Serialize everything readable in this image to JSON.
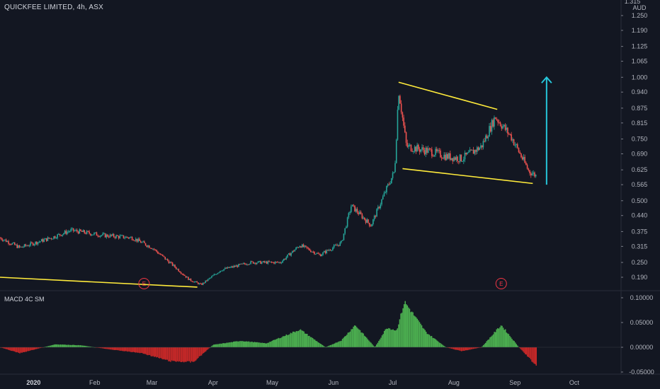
{
  "header": {
    "title": "QUICKFEE LIMITED, 4h, ASX",
    "currency": "AUD"
  },
  "macd_label": "MACD 4C SM",
  "colors": {
    "background": "#131722",
    "up": "#26a69a",
    "down": "#ef5350",
    "trendline": "#ffeb3b",
    "arrow": "#26c6da",
    "macd_positive": "#4caf50",
    "macd_negative": "#c62828",
    "earnings_marker": "#f23645"
  },
  "icons": [
    "earnings-e-icon",
    "arrow-up-icon"
  ],
  "chart_data": [
    {
      "type": "candlestick",
      "title": "QUICKFEE LIMITED, 4h, ASX",
      "y_unit": "AUD",
      "y_ticks": [
        "1.315",
        "1.250",
        "1.190",
        "1.125",
        "1.065",
        "1.000",
        "0.940",
        "0.875",
        "0.815",
        "0.750",
        "0.690",
        "0.625",
        "0.565",
        "0.500",
        "0.440",
        "0.375",
        "0.315",
        "0.250",
        "0.190"
      ],
      "x_ticks": [
        "2020",
        "Feb",
        "Mar",
        "Apr",
        "May",
        "Jun",
        "Jul",
        "Aug",
        "Sep",
        "Oct"
      ],
      "approx_close_path": [
        {
          "date": "2019-12-15",
          "price": 0.35
        },
        {
          "date": "2019-12-25",
          "price": 0.31
        },
        {
          "date": "2020-01-10",
          "price": 0.35
        },
        {
          "date": "2020-01-20",
          "price": 0.38
        },
        {
          "date": "2020-02-05",
          "price": 0.36
        },
        {
          "date": "2020-02-20",
          "price": 0.35
        },
        {
          "date": "2020-03-01",
          "price": 0.31
        },
        {
          "date": "2020-03-10",
          "price": 0.25
        },
        {
          "date": "2020-03-20",
          "price": 0.18
        },
        {
          "date": "2020-03-26",
          "price": 0.16
        },
        {
          "date": "2020-04-05",
          "price": 0.22
        },
        {
          "date": "2020-04-20",
          "price": 0.25
        },
        {
          "date": "2020-05-05",
          "price": 0.25
        },
        {
          "date": "2020-05-15",
          "price": 0.32
        },
        {
          "date": "2020-05-25",
          "price": 0.28
        },
        {
          "date": "2020-06-05",
          "price": 0.33
        },
        {
          "date": "2020-06-10",
          "price": 0.48
        },
        {
          "date": "2020-06-20",
          "price": 0.4
        },
        {
          "date": "2020-06-28",
          "price": 0.55
        },
        {
          "date": "2020-07-02",
          "price": 0.62
        },
        {
          "date": "2020-07-04",
          "price": 0.95
        },
        {
          "date": "2020-07-08",
          "price": 0.72
        },
        {
          "date": "2020-07-20",
          "price": 0.7
        },
        {
          "date": "2020-07-28",
          "price": 0.68
        },
        {
          "date": "2020-08-05",
          "price": 0.67
        },
        {
          "date": "2020-08-15",
          "price": 0.72
        },
        {
          "date": "2020-08-22",
          "price": 0.84
        },
        {
          "date": "2020-08-30",
          "price": 0.76
        },
        {
          "date": "2020-09-08",
          "price": 0.62
        },
        {
          "date": "2020-09-12",
          "price": 0.6
        }
      ],
      "annotations": {
        "upper_trendline": [
          {
            "date": "2020-07-04",
            "price": 0.98
          },
          {
            "date": "2020-08-23",
            "price": 0.87
          }
        ],
        "lower_trendline": [
          {
            "date": "2020-07-06",
            "price": 0.63
          },
          {
            "date": "2020-09-10",
            "price": 0.57
          }
        ],
        "long_trendline": [
          {
            "date": "2019-12-15",
            "price": 0.19
          },
          {
            "date": "2020-03-24",
            "price": 0.15
          }
        ],
        "target_arrow": {
          "from": {
            "date": "2020-09-17",
            "price": 0.565
          },
          "to": {
            "date": "2020-09-17",
            "price": 1.0
          }
        },
        "earnings": [
          {
            "label": "E",
            "date": "2020-02-26"
          },
          {
            "label": "E",
            "date": "2020-08-25"
          }
        ]
      }
    },
    {
      "type": "bar",
      "title": "MACD 4C SM",
      "y_ticks": [
        "0.10000",
        "0.05000",
        "0.00000",
        "-0.05000"
      ],
      "approx_path": [
        {
          "date": "2019-12-15",
          "value": 0.0
        },
        {
          "date": "2019-12-25",
          "value": -0.012
        },
        {
          "date": "2020-01-12",
          "value": 0.006
        },
        {
          "date": "2020-01-25",
          "value": 0.004
        },
        {
          "date": "2020-02-10",
          "value": -0.005
        },
        {
          "date": "2020-02-25",
          "value": -0.012
        },
        {
          "date": "2020-03-10",
          "value": -0.028
        },
        {
          "date": "2020-03-22",
          "value": -0.03
        },
        {
          "date": "2020-04-01",
          "value": 0.005
        },
        {
          "date": "2020-04-15",
          "value": 0.013
        },
        {
          "date": "2020-04-28",
          "value": 0.008
        },
        {
          "date": "2020-05-15",
          "value": 0.036
        },
        {
          "date": "2020-05-28",
          "value": 0.0
        },
        {
          "date": "2020-06-05",
          "value": 0.014
        },
        {
          "date": "2020-06-12",
          "value": 0.045
        },
        {
          "date": "2020-06-22",
          "value": 0.0
        },
        {
          "date": "2020-06-28",
          "value": 0.04
        },
        {
          "date": "2020-07-03",
          "value": 0.034
        },
        {
          "date": "2020-07-07",
          "value": 0.092
        },
        {
          "date": "2020-07-18",
          "value": 0.03
        },
        {
          "date": "2020-07-28",
          "value": 0.0
        },
        {
          "date": "2020-08-05",
          "value": -0.008
        },
        {
          "date": "2020-08-15",
          "value": 0.0
        },
        {
          "date": "2020-08-25",
          "value": 0.045
        },
        {
          "date": "2020-09-03",
          "value": 0.0
        },
        {
          "date": "2020-09-12",
          "value": -0.038
        }
      ]
    }
  ]
}
